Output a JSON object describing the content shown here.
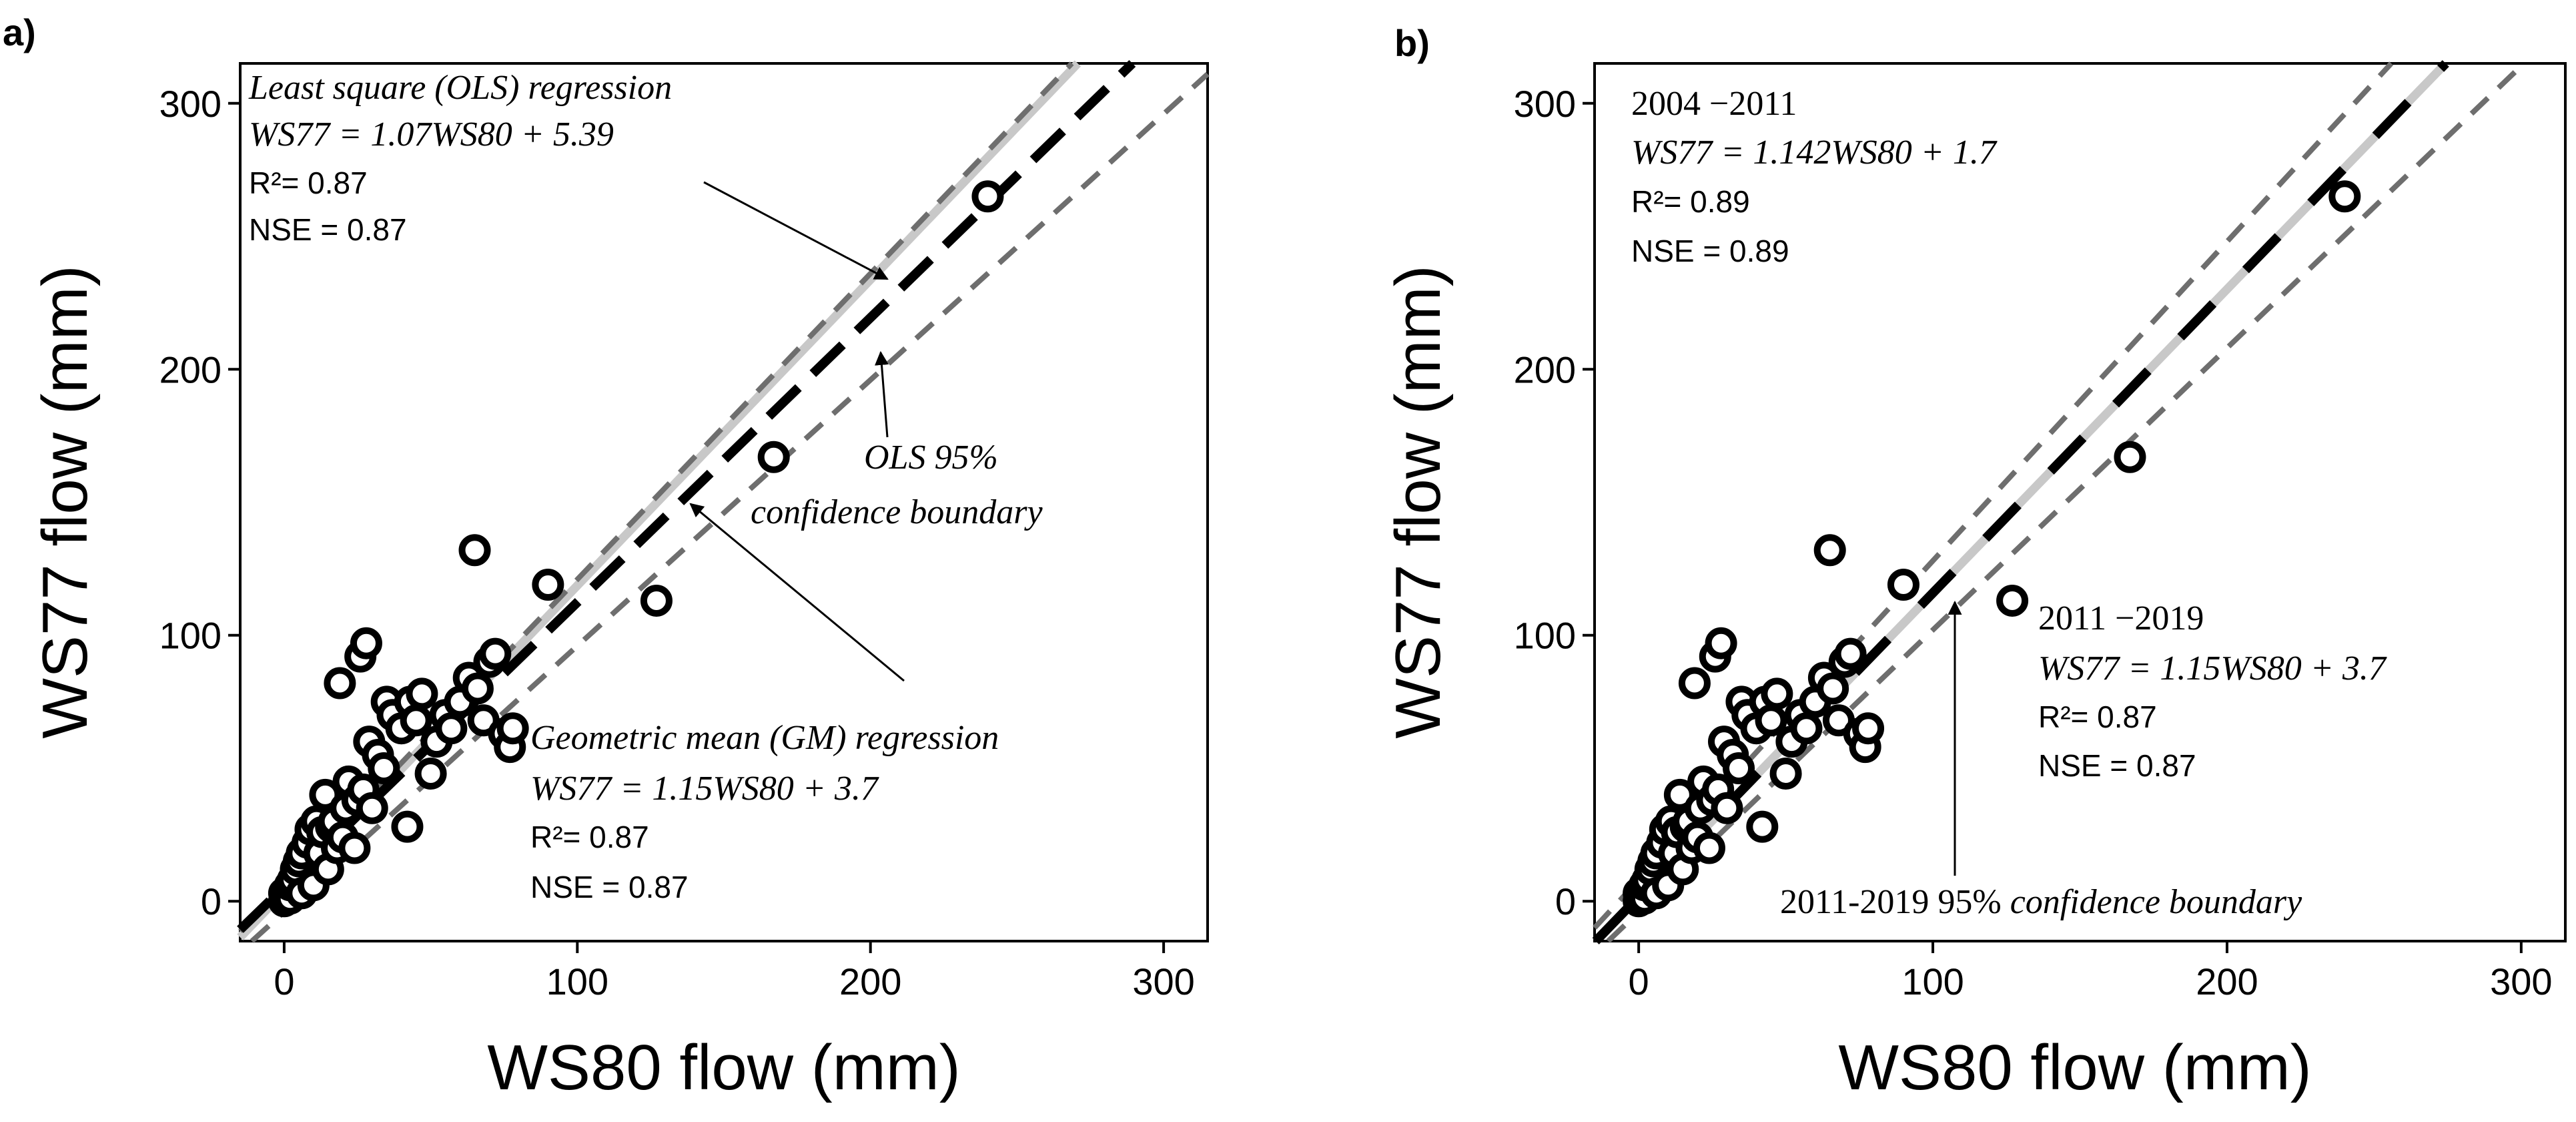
{
  "chart_data": [
    {
      "panel": "a)",
      "type": "scatter",
      "xlabel": "WS80 flow (mm)",
      "ylabel": "WS77 flow (mm)",
      "xlim": [
        -15,
        315
      ],
      "ylim": [
        -15,
        315
      ],
      "xticks": [
        0,
        100,
        200,
        300
      ],
      "yticks": [
        0,
        100,
        200,
        300
      ],
      "grid": false,
      "points": [
        [
          0,
          0
        ],
        [
          0,
          3
        ],
        [
          1,
          2
        ],
        [
          2,
          1
        ],
        [
          2,
          6
        ],
        [
          3,
          8
        ],
        [
          4,
          12
        ],
        [
          5,
          15
        ],
        [
          6,
          3
        ],
        [
          6,
          18
        ],
        [
          8,
          22
        ],
        [
          9,
          27
        ],
        [
          10,
          6
        ],
        [
          11,
          30
        ],
        [
          12,
          18
        ],
        [
          13,
          26
        ],
        [
          14,
          40
        ],
        [
          15,
          12
        ],
        [
          16,
          28
        ],
        [
          17,
          30
        ],
        [
          18,
          20
        ],
        [
          19,
          82
        ],
        [
          20,
          24
        ],
        [
          21,
          35
        ],
        [
          22,
          45
        ],
        [
          24,
          20
        ],
        [
          25,
          38
        ],
        [
          26,
          92
        ],
        [
          27,
          42
        ],
        [
          28,
          97
        ],
        [
          29,
          60
        ],
        [
          30,
          35
        ],
        [
          32,
          55
        ],
        [
          34,
          50
        ],
        [
          35,
          75
        ],
        [
          37,
          70
        ],
        [
          40,
          65
        ],
        [
          42,
          28
        ],
        [
          43,
          75
        ],
        [
          45,
          68
        ],
        [
          47,
          78
        ],
        [
          50,
          48
        ],
        [
          52,
          60
        ],
        [
          55,
          70
        ],
        [
          57,
          65
        ],
        [
          60,
          75
        ],
        [
          63,
          84
        ],
        [
          65,
          132
        ],
        [
          66,
          80
        ],
        [
          68,
          68
        ],
        [
          70,
          90
        ],
        [
          72,
          93
        ],
        [
          75,
          63
        ],
        [
          77,
          58
        ],
        [
          78,
          65
        ],
        [
          90,
          119
        ],
        [
          127,
          113
        ],
        [
          167,
          167
        ],
        [
          240,
          265
        ]
      ],
      "lines": [
        {
          "name": "OLS regression",
          "slope": 1.07,
          "intercept": 5.39,
          "style": "black dashed"
        },
        {
          "name": "GM regression",
          "slope": 1.15,
          "intercept": 3.7,
          "style": "light gray solid"
        },
        {
          "name": "OLS 95% confidence boundary upper",
          "slope": 1.15,
          "intercept": 6,
          "style": "gray dashed"
        },
        {
          "name": "OLS 95% confidence boundary lower",
          "slope": 1.0,
          "intercept": -4,
          "style": "gray dashed"
        }
      ],
      "annotations": {
        "ols_title": "Least square (OLS) regression",
        "ols_eq": "WS77 = 1.07WS80 + 5.39",
        "ols_r2": "R²= 0.87",
        "ols_nse": "NSE = 0.87",
        "ci_line1": "OLS 95%",
        "ci_line2": "confidence boundary",
        "gm_title": "Geometric mean (GM) regression",
        "gm_eq": "WS77 = 1.15WS80 + 3.7",
        "gm_r2": "R²= 0.87",
        "gm_nse": "NSE = 0.87"
      }
    },
    {
      "panel": "b)",
      "type": "scatter",
      "xlabel": "WS80 flow (mm)",
      "ylabel": "WS77 flow (mm)",
      "xlim": [
        -15,
        315
      ],
      "ylim": [
        -15,
        315
      ],
      "xticks": [
        0,
        100,
        200,
        300
      ],
      "yticks": [
        0,
        100,
        200,
        300
      ],
      "grid": false,
      "points": [
        [
          0,
          0
        ],
        [
          0,
          3
        ],
        [
          1,
          2
        ],
        [
          2,
          1
        ],
        [
          2,
          6
        ],
        [
          3,
          8
        ],
        [
          4,
          12
        ],
        [
          5,
          15
        ],
        [
          6,
          3
        ],
        [
          6,
          18
        ],
        [
          8,
          22
        ],
        [
          9,
          27
        ],
        [
          10,
          6
        ],
        [
          11,
          30
        ],
        [
          12,
          18
        ],
        [
          13,
          26
        ],
        [
          14,
          40
        ],
        [
          15,
          12
        ],
        [
          16,
          28
        ],
        [
          17,
          30
        ],
        [
          18,
          20
        ],
        [
          19,
          82
        ],
        [
          20,
          24
        ],
        [
          21,
          35
        ],
        [
          22,
          45
        ],
        [
          24,
          20
        ],
        [
          25,
          38
        ],
        [
          26,
          92
        ],
        [
          27,
          42
        ],
        [
          28,
          97
        ],
        [
          29,
          60
        ],
        [
          30,
          35
        ],
        [
          32,
          55
        ],
        [
          34,
          50
        ],
        [
          35,
          75
        ],
        [
          37,
          70
        ],
        [
          40,
          65
        ],
        [
          42,
          28
        ],
        [
          43,
          75
        ],
        [
          45,
          68
        ],
        [
          47,
          78
        ],
        [
          50,
          48
        ],
        [
          52,
          60
        ],
        [
          55,
          70
        ],
        [
          57,
          65
        ],
        [
          60,
          75
        ],
        [
          63,
          84
        ],
        [
          65,
          132
        ],
        [
          66,
          80
        ],
        [
          68,
          68
        ],
        [
          70,
          90
        ],
        [
          72,
          93
        ],
        [
          75,
          63
        ],
        [
          77,
          58
        ],
        [
          78,
          65
        ],
        [
          90,
          119
        ],
        [
          127,
          113
        ],
        [
          167,
          167
        ],
        [
          240,
          265
        ]
      ],
      "lines": [
        {
          "name": "2004-2011 regression",
          "slope": 1.142,
          "intercept": 1.7,
          "style": "black/gray alternating"
        },
        {
          "name": "2011-2019 95% confidence boundary upper",
          "slope": 1.2,
          "intercept": 8,
          "style": "gray dashed"
        },
        {
          "name": "2011-2019 95% confidence boundary lower",
          "slope": 1.06,
          "intercept": -4,
          "style": "gray dashed"
        }
      ],
      "annotations": {
        "p1_title": "2004 −2011",
        "p1_eq": "WS77 = 1.142WS80 + 1.7",
        "p1_r2": "R²= 0.89",
        "p1_nse": "NSE = 0.89",
        "p2_title": "2011 −2019",
        "p2_eq": "WS77 = 1.15WS80 + 3.7",
        "p2_r2": "R²= 0.87",
        "p2_nse": "NSE = 0.87",
        "ci_label_a": "2011-2019 95% ",
        "ci_label_b": "confidence boundary"
      }
    }
  ],
  "colors": {
    "points": "#000000",
    "ols_line": "#000000",
    "gm_line": "#c8c8c8",
    "ci_line": "#6e6e6e",
    "axis": "#000000"
  }
}
